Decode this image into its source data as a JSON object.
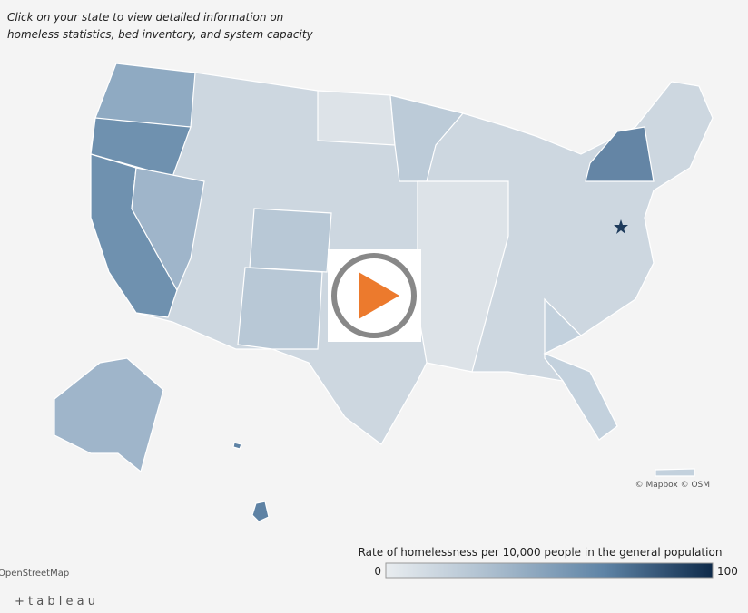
{
  "header": {
    "line1": "Click on your state to view detailed information on",
    "line2": "homeless statistics, bed inventory, and system capacity"
  },
  "attribution": {
    "map": "© Mapbox © OSM",
    "osm": "OpenStreetMap"
  },
  "legend": {
    "title": "Rate of homelessness per 10,000 people in the general population",
    "min": 0,
    "max": 100,
    "colors": [
      "#e9edf0",
      "#a9bccd",
      "#5f84a6",
      "#0e2a4a"
    ]
  },
  "brand": "+ t a b l e a u"
}
